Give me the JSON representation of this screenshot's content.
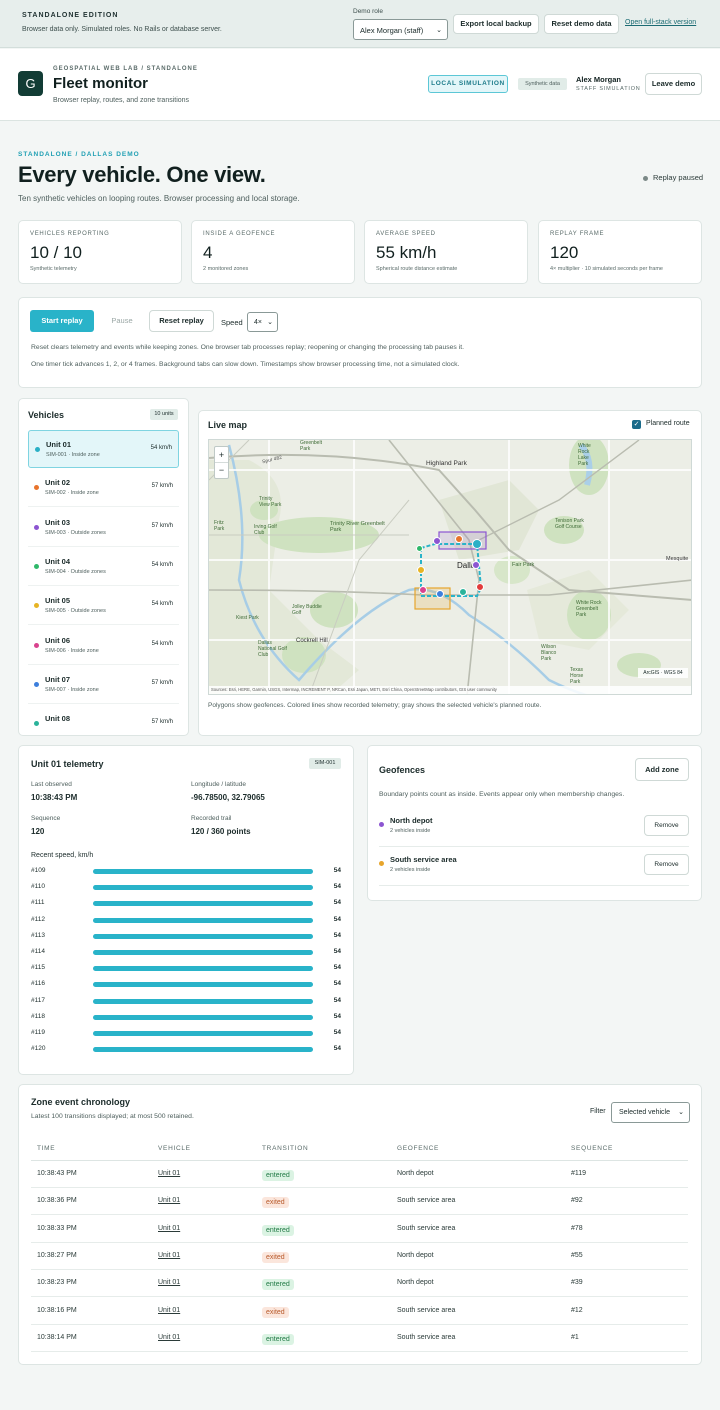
{
  "edition": {
    "title": "STANDALONE EDITION",
    "subtitle": "Browser data only. Simulated roles. No Rails or database server."
  },
  "role": {
    "label": "Demo role",
    "selected": "Alex Morgan (staff)"
  },
  "top_actions": {
    "export": "Export local backup",
    "reset": "Reset demo data",
    "fullstack": "Open full-stack version"
  },
  "header": {
    "kicker": "GEOSPATIAL WEB LAB / STANDALONE",
    "logo": "G",
    "title": "Fleet monitor",
    "subtitle": "Browser replay, routes, and zone transitions",
    "badge": "LOCAL SIMULATION",
    "synthetic": "Synthetic data",
    "user": "Alex Morgan",
    "user_role": "STAFF SIMULATION",
    "leave": "Leave demo"
  },
  "hero": {
    "kicker": "STANDALONE / DALLAS DEMO",
    "title": "Every vehicle. One view.",
    "subtitle": "Ten synthetic vehicles on looping routes. Browser processing and local storage.",
    "status": "Replay paused"
  },
  "stats": [
    {
      "label": "VEHICLES REPORTING",
      "value": "10 / 10",
      "note": "Synthetic telemetry"
    },
    {
      "label": "INSIDE A GEOFENCE",
      "value": "4",
      "note": "2 monitored zones"
    },
    {
      "label": "AVERAGE SPEED",
      "value": "55 km/h",
      "note": "Spherical route distance estimate"
    },
    {
      "label": "REPLAY FRAME",
      "value": "120",
      "note": "4× multiplier · 10 simulated seconds per frame"
    }
  ],
  "controls": {
    "start": "Start replay",
    "pause": "Pause",
    "reset": "Reset replay",
    "speed_label": "Speed",
    "speed": "4×",
    "note1": "Reset clears telemetry and events while keeping zones. One browser tab processes replay; reopening or changing the processing tab pauses it.",
    "note2": "One timer tick advances 1, 2, or 4 frames. Background tabs can slow down. Timestamps show browser processing time, not a simulated clock."
  },
  "vehicles": {
    "title": "Vehicles",
    "count": "10 units",
    "items": [
      {
        "name": "Unit 01",
        "sub": "SIM-001 · Inside zone",
        "speed": "54 km/h",
        "color": "#2ab0c6"
      },
      {
        "name": "Unit 02",
        "sub": "SIM-002 · Inside zone",
        "speed": "57 km/h",
        "color": "#e8742c"
      },
      {
        "name": "Unit 03",
        "sub": "SIM-003 · Outside zones",
        "speed": "57 km/h",
        "color": "#8c55d1"
      },
      {
        "name": "Unit 04",
        "sub": "SIM-004 · Outside zones",
        "speed": "54 km/h",
        "color": "#2fb86a"
      },
      {
        "name": "Unit 05",
        "sub": "SIM-005 · Outside zones",
        "speed": "54 km/h",
        "color": "#e7b424"
      },
      {
        "name": "Unit 06",
        "sub": "SIM-006 · Inside zone",
        "speed": "54 km/h",
        "color": "#d9438e"
      },
      {
        "name": "Unit 07",
        "sub": "SIM-007 · Inside zone",
        "speed": "57 km/h",
        "color": "#3d7fdc"
      },
      {
        "name": "Unit 08",
        "sub": "",
        "speed": "57 km/h",
        "color": "#2bb39a"
      }
    ]
  },
  "map": {
    "title": "Live map",
    "planned": "Planned route",
    "zoom_in": "+",
    "zoom_out": "−",
    "crs": "ArcGIS · WGS 84",
    "attribution": "Sources: Esri, HERE, Garmin, USGS, Intermap, INCREMENT P, NRCan, Esri Japan, METI, Esri China, OpenStreetMap contributors, GIS user community",
    "caption": "Polygons show geofences. Colored lines show recorded telemetry; gray shows the selected vehicle's planned route.",
    "labels": {
      "highland": "Highland Park",
      "dallas": "Dallas",
      "trinity": "Trinity River Greenbelt Park",
      "fair": "Fair Park",
      "cockrell": "Cockrell Hill",
      "whiterock": "White Rock Lake Park",
      "tenison": "Tenison Park Golf Course",
      "greenbelt": "Greenbelt Park",
      "kiest": "Kiest Park",
      "jbg": "Jolley Buddie Golf",
      "mesquite": "Mesquite",
      "wrgreen": "White Rock Greenbelt Park",
      "wilson": "Wilson Blanco Park",
      "texas": "Texas Horse Park",
      "dngc": "Dallas National Golf Club",
      "fritz": "Fritz Park",
      "irving": "Irving Golf Club",
      "trinview": "Trinity View Park",
      "sh": "Spur 482"
    }
  },
  "telemetry": {
    "title": "Unit 01 telemetry",
    "sim": "SIM-001",
    "last_label": "Last observed",
    "last": "10:38:43 PM",
    "lonlat_label": "Longitude / latitude",
    "lonlat": "-96.78500, 32.79065",
    "seq_label": "Sequence",
    "seq": "120",
    "trail_label": "Recorded trail",
    "trail": "120 / 360 points",
    "recent_label": "Recent speed, km/h",
    "speeds": [
      {
        "label": "#109",
        "value": 54
      },
      {
        "label": "#110",
        "value": 54
      },
      {
        "label": "#111",
        "value": 54
      },
      {
        "label": "#112",
        "value": 54
      },
      {
        "label": "#113",
        "value": 54
      },
      {
        "label": "#114",
        "value": 54
      },
      {
        "label": "#115",
        "value": 54
      },
      {
        "label": "#116",
        "value": 54
      },
      {
        "label": "#117",
        "value": 54
      },
      {
        "label": "#118",
        "value": 54
      },
      {
        "label": "#119",
        "value": 54
      },
      {
        "label": "#120",
        "value": 54
      }
    ]
  },
  "geofences": {
    "title": "Geofences",
    "add": "Add zone",
    "note": "Boundary points count as inside. Events appear only when membership changes.",
    "remove": "Remove",
    "items": [
      {
        "name": "North depot",
        "sub": "2 vehicles inside",
        "color": "#8c55d1"
      },
      {
        "name": "South service area",
        "sub": "2 vehicles inside",
        "color": "#e7a52c"
      }
    ]
  },
  "events": {
    "title": "Zone event chronology",
    "subtitle": "Latest 100 transitions displayed; at most 500 retained.",
    "filter_label": "Filter",
    "filter": "Selected vehicle",
    "columns": [
      "TIME",
      "VEHICLE",
      "TRANSITION",
      "GEOFENCE",
      "SEQUENCE"
    ],
    "rows": [
      {
        "time": "10:38:43 PM",
        "vehicle": "Unit 01",
        "transition": "entered",
        "geofence": "North depot",
        "seq": "#119"
      },
      {
        "time": "10:38:36 PM",
        "vehicle": "Unit 01",
        "transition": "exited",
        "geofence": "South service area",
        "seq": "#92"
      },
      {
        "time": "10:38:33 PM",
        "vehicle": "Unit 01",
        "transition": "entered",
        "geofence": "South service area",
        "seq": "#78"
      },
      {
        "time": "10:38:27 PM",
        "vehicle": "Unit 01",
        "transition": "exited",
        "geofence": "North depot",
        "seq": "#55"
      },
      {
        "time": "10:38:23 PM",
        "vehicle": "Unit 01",
        "transition": "entered",
        "geofence": "North depot",
        "seq": "#39"
      },
      {
        "time": "10:38:16 PM",
        "vehicle": "Unit 01",
        "transition": "exited",
        "geofence": "South service area",
        "seq": "#12"
      },
      {
        "time": "10:38:14 PM",
        "vehicle": "Unit 01",
        "transition": "entered",
        "geofence": "South service area",
        "seq": "#1"
      }
    ]
  }
}
